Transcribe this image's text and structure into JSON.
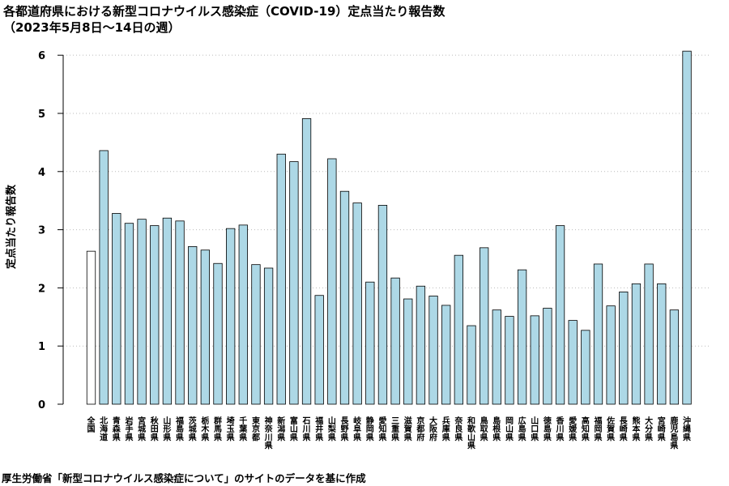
{
  "chart_data": {
    "type": "bar",
    "title": "各都道府県における新型コロナウイルス感染症（COVID-19）定点当たり報告数",
    "subtitle": "（2023年5月8日〜14日の週）",
    "xlabel": "",
    "ylabel": "定点当たり報告数",
    "ylim": [
      0,
      6.1
    ],
    "yticks": [
      0,
      1,
      2,
      3,
      4,
      5,
      6
    ],
    "grid": true,
    "categories": [
      "全国",
      "北海道",
      "青森県",
      "岩手県",
      "宮城県",
      "秋田県",
      "山形県",
      "福島県",
      "茨城県",
      "栃木県",
      "群馬県",
      "埼玉県",
      "千葉県",
      "東京都",
      "神奈川県",
      "新潟県",
      "富山県",
      "石川県",
      "福井県",
      "山梨県",
      "長野県",
      "岐阜県",
      "静岡県",
      "愛知県",
      "三重県",
      "滋賀県",
      "京都府",
      "大阪府",
      "兵庫県",
      "奈良県",
      "和歌山県",
      "鳥取県",
      "島根県",
      "岡山県",
      "広島県",
      "山口県",
      "徳島県",
      "香川県",
      "愛媛県",
      "高知県",
      "福岡県",
      "佐賀県",
      "長崎県",
      "熊本県",
      "大分県",
      "宮崎県",
      "鹿児島県",
      "沖縄県"
    ],
    "values": [
      2.63,
      4.36,
      3.28,
      3.11,
      3.18,
      3.07,
      3.2,
      3.15,
      2.71,
      2.65,
      2.42,
      3.02,
      3.08,
      2.4,
      2.34,
      4.3,
      4.17,
      4.91,
      1.87,
      4.22,
      3.66,
      3.46,
      2.1,
      3.42,
      2.17,
      1.81,
      2.03,
      1.86,
      1.7,
      2.56,
      1.35,
      2.69,
      1.62,
      1.51,
      2.31,
      1.52,
      1.65,
      3.07,
      1.44,
      1.27,
      2.41,
      1.69,
      1.93,
      2.07,
      2.41,
      2.07,
      1.62,
      6.07
    ],
    "colors": {
      "national": "#ffffff",
      "prefecture": "#add8e6",
      "stroke": "#000000",
      "grid": "#bbbbbb"
    }
  },
  "source_note": "厚生労働省「新型コロナウイルス感染症について」のサイトのデータを基に作成"
}
